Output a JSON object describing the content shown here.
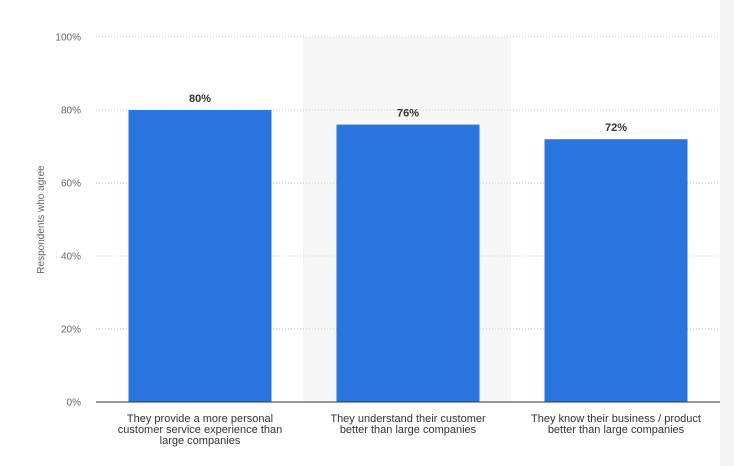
{
  "chart_data": {
    "type": "bar",
    "categories": [
      [
        "They provide a more personal",
        "customer service experience than",
        "large companies"
      ],
      [
        "They understand their customer",
        "better than large companies"
      ],
      [
        "They know their business / product",
        "better than large companies"
      ]
    ],
    "values": [
      80,
      76,
      72
    ],
    "data_labels": [
      "80%",
      "76%",
      "72%"
    ],
    "ylabel": "Respondents who agree",
    "ylim": [
      0,
      100
    ],
    "yticks": [
      0,
      20,
      40,
      60,
      80,
      100
    ],
    "ytick_labels": [
      "0%",
      "20%",
      "40%",
      "60%",
      "80%",
      "100%"
    ],
    "grid": true,
    "legend": "none",
    "bar_color": "#2a76dd"
  }
}
